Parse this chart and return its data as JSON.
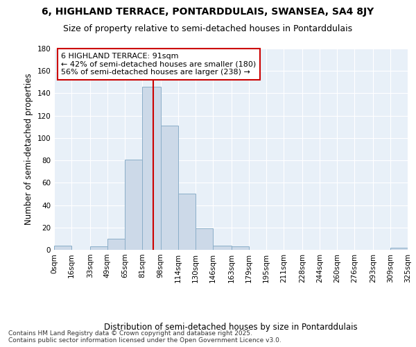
{
  "title": "6, HIGHLAND TERRACE, PONTARDDULAIS, SWANSEA, SA4 8JY",
  "subtitle": "Size of property relative to semi-detached houses in Pontarddulais",
  "xlabel": "Distribution of semi-detached houses by size in Pontarddulais",
  "ylabel": "Number of semi-detached properties",
  "bin_edges": [
    0,
    16,
    33,
    49,
    65,
    81,
    98,
    114,
    130,
    146,
    163,
    179,
    195,
    211,
    228,
    244,
    260,
    276,
    293,
    309,
    325
  ],
  "bin_labels": [
    "0sqm",
    "16sqm",
    "33sqm",
    "49sqm",
    "65sqm",
    "81sqm",
    "98sqm",
    "114sqm",
    "130sqm",
    "146sqm",
    "163sqm",
    "179sqm",
    "195sqm",
    "211sqm",
    "228sqm",
    "244sqm",
    "260sqm",
    "276sqm",
    "293sqm",
    "309sqm",
    "325sqm"
  ],
  "counts": [
    4,
    0,
    3,
    10,
    81,
    146,
    111,
    50,
    19,
    4,
    3,
    0,
    0,
    0,
    0,
    0,
    0,
    0,
    0,
    2
  ],
  "bar_color": "#ccd9e8",
  "bar_edge_color": "#8aaec8",
  "property_size": 91,
  "vline_color": "#cc0000",
  "annotation_text": "6 HIGHLAND TERRACE: 91sqm\n← 42% of semi-detached houses are smaller (180)\n56% of semi-detached houses are larger (238) →",
  "annotation_box_color": "#ffffff",
  "annotation_box_edge": "#cc0000",
  "ylim": [
    0,
    180
  ],
  "yticks": [
    0,
    20,
    40,
    60,
    80,
    100,
    120,
    140,
    160,
    180
  ],
  "background_color": "#e8f0f8",
  "grid_color": "#ffffff",
  "footer_text": "Contains HM Land Registry data © Crown copyright and database right 2025.\nContains public sector information licensed under the Open Government Licence v3.0.",
  "title_fontsize": 10,
  "subtitle_fontsize": 9,
  "axis_label_fontsize": 8.5,
  "tick_fontsize": 7.5,
  "annotation_fontsize": 8,
  "footer_fontsize": 6.5
}
